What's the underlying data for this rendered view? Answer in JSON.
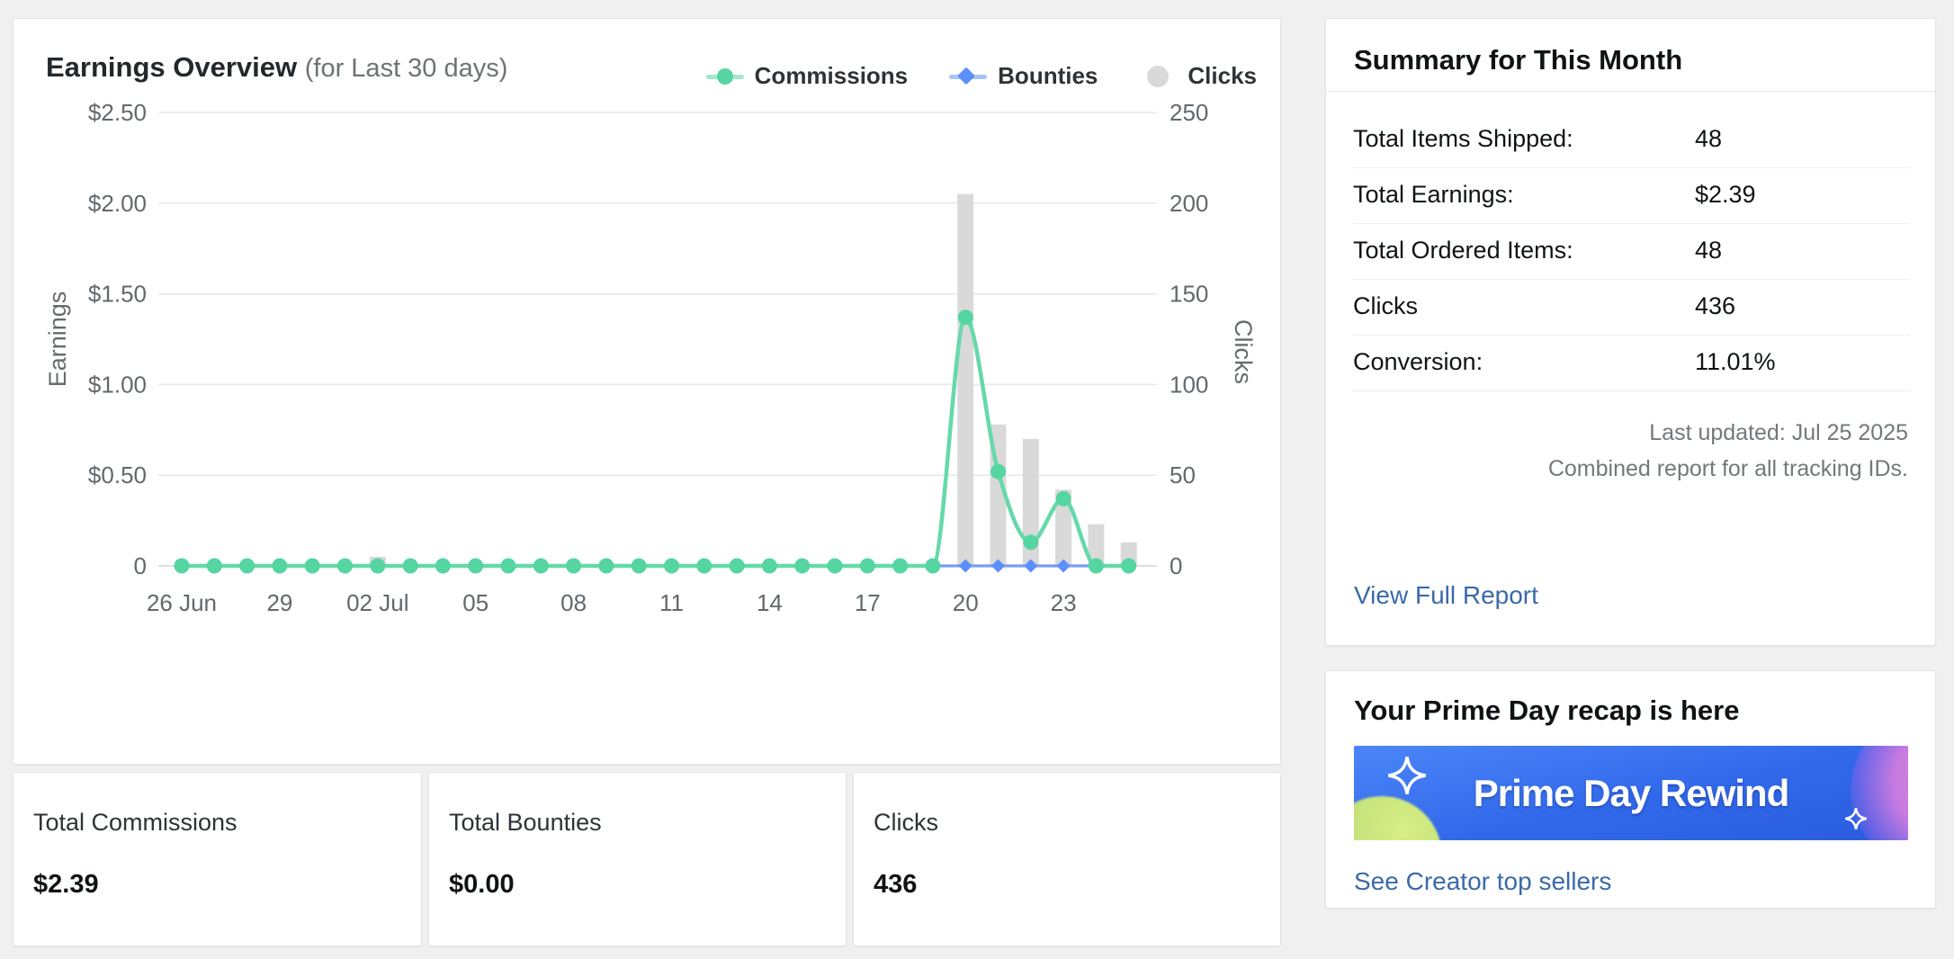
{
  "earnings_card": {
    "title": "Earnings Overview",
    "subtitle": "(for Last 30 days)",
    "legend": [
      {
        "label": "Commissions",
        "marker": "line-dot",
        "color": "#55d5a1",
        "line_color": "#a5e7cd"
      },
      {
        "label": "Bounties",
        "marker": "line-diamond",
        "color": "#5b8ff9",
        "line_color": "#a9c3f9"
      },
      {
        "label": "Clicks",
        "marker": "circle",
        "color": "#d9d9d9",
        "line_color": "#d9d9d9"
      }
    ]
  },
  "chart_data": {
    "type": "combo: smooth line (Commissions, left $ axis) + flat line (Bounties, left $ axis) + bars (Clicks, right axis)",
    "x_period": "26 Jun - 25 Jul, one point per day (30 days)",
    "x_tick_labels": [
      "26 Jun",
      "29",
      "02 Jul",
      "05",
      "08",
      "11",
      "14",
      "17",
      "20",
      "23"
    ],
    "x_tick_day_indices": [
      0,
      3,
      6,
      9,
      12,
      15,
      18,
      21,
      24,
      27
    ],
    "left_axis": {
      "title": "Earnings",
      "ticks": [
        "$2.50",
        "$2.00",
        "$1.50",
        "$1.00",
        "$0.50",
        "0"
      ],
      "min": 0,
      "max": 2.5
    },
    "right_axis": {
      "title": "Clicks",
      "ticks": [
        "250",
        "200",
        "150",
        "100",
        "50",
        "0"
      ],
      "min": 0,
      "max": 250
    },
    "grid": "horizontal gridlines only, legend top-right",
    "series": [
      {
        "name": "Commissions",
        "axis": "left",
        "type": "smooth-line",
        "color": "#55d5a1",
        "line_color": "#66d9ab",
        "values": [
          0,
          0,
          0,
          0,
          0,
          0,
          0,
          0,
          0,
          0,
          0,
          0,
          0,
          0,
          0,
          0,
          0,
          0,
          0,
          0,
          0,
          0,
          0,
          0,
          1.37,
          0.52,
          0.13,
          0.37,
          0,
          0
        ]
      },
      {
        "name": "Bounties",
        "axis": "left",
        "type": "line-diamond",
        "color": "#5b8ff9",
        "line_color": "#7b9bef",
        "values": [
          0,
          0,
          0,
          0,
          0,
          0,
          0,
          0,
          0,
          0,
          0,
          0,
          0,
          0,
          0,
          0,
          0,
          0,
          0,
          0,
          0,
          0,
          0,
          0,
          0,
          0,
          0,
          0,
          0,
          0
        ]
      },
      {
        "name": "Clicks",
        "axis": "right",
        "type": "bar",
        "color": "#d9d9d9",
        "values": [
          0,
          0,
          0,
          0,
          0,
          0,
          5,
          0,
          0,
          0,
          0,
          0,
          0,
          0,
          0,
          0,
          0,
          0,
          0,
          0,
          0,
          0,
          0,
          0,
          205,
          78,
          70,
          42,
          23,
          13
        ]
      }
    ]
  },
  "totals": [
    {
      "label": "Total Commissions",
      "value": "$2.39"
    },
    {
      "label": "Total Bounties",
      "value": "$0.00"
    },
    {
      "label": "Clicks",
      "value": "436"
    }
  ],
  "summary_card": {
    "title": "Summary for This Month",
    "rows": [
      {
        "label": "Total Items Shipped:",
        "value": "48"
      },
      {
        "label": "Total Earnings:",
        "value": "$2.39"
      },
      {
        "label": "Total Ordered Items:",
        "value": "48"
      },
      {
        "label": "Clicks",
        "value": "436"
      },
      {
        "label": "Conversion:",
        "value": "11.01%"
      }
    ],
    "last_updated": "Last updated: Jul 25 2025",
    "combined_note": "Combined report for all tracking IDs.",
    "link": "View Full Report"
  },
  "prime_card": {
    "title": "Your Prime Day recap is here",
    "banner_text": "Prime Day Rewind",
    "link": "See Creator top sellers"
  }
}
